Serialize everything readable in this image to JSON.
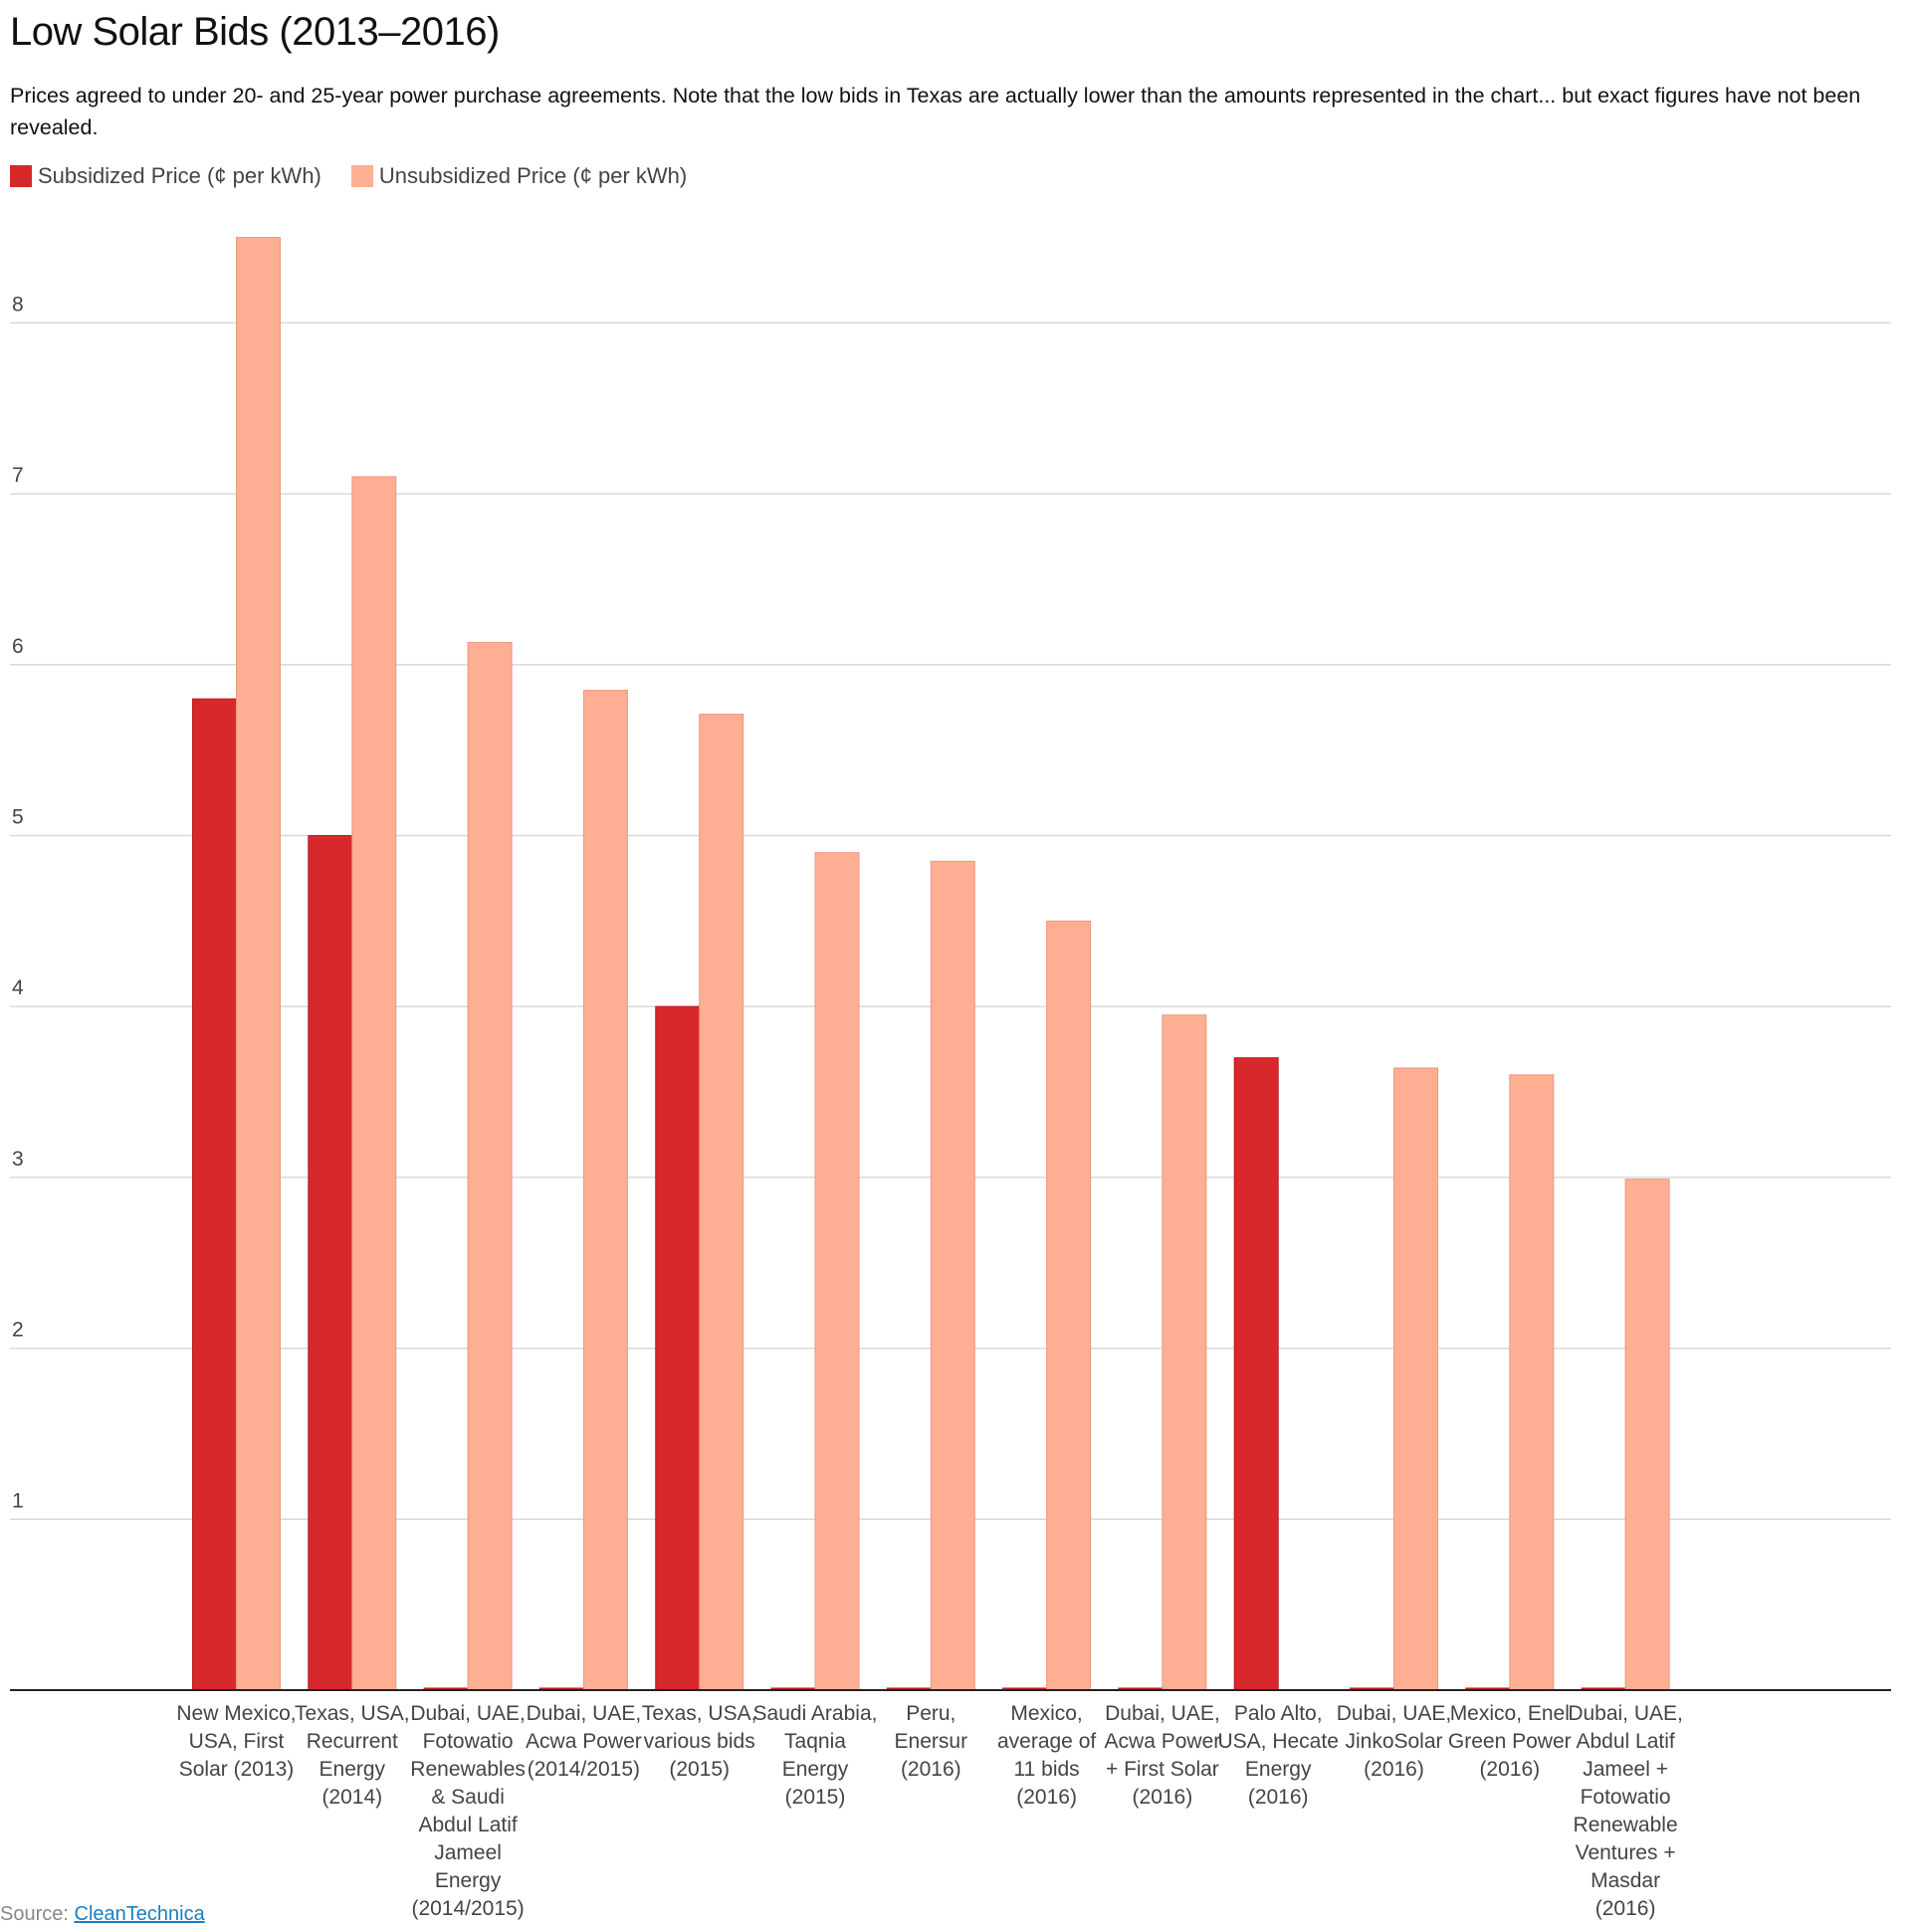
{
  "chart_data": {
    "type": "bar",
    "title": "Low Solar Bids (2013–2016)",
    "subtitle": "Prices agreed to under 20- and 25-year power purchase agreements. Note that the low bids in Texas are actually lower than the amounts represented in the chart... but exact figures have not been revealed.",
    "xlabel": "",
    "ylabel": "",
    "ylim": [
      0,
      8.6
    ],
    "yticks": [
      1,
      2,
      3,
      4,
      5,
      6,
      7,
      8
    ],
    "grid": true,
    "legend_placement": "top-left",
    "categories": [
      "New Mexico, USA, First Solar (2013)",
      "Texas, USA, Recurrent Energy (2014)",
      "Dubai, UAE, Fotowatio Renewables & Saudi Abdul Latif Jameel Energy (2014/2015)",
      "Dubai, UAE, Acwa Power (2014/2015)",
      "Texas, USA, various bids (2015)",
      "Saudi Arabia, Taqnia Energy (2015)",
      "Peru, Enersur (2016)",
      "Mexico, average of 11 bids (2016)",
      "Dubai, UAE, Acwa Power + First Solar (2016)",
      "Palo Alto, USA, Hecate Energy (2016)",
      "Dubai, UAE, JinkoSolar (2016)",
      "Mexico, Enel Green Power (2016)",
      "Dubai, UAE, Abdul Latif Jameel + Fotowatio Renewable Ventures + Masdar (2016)"
    ],
    "series": [
      {
        "name": "Subsidized Price (¢ per kWh)",
        "color": "#d7282c",
        "values": [
          5.8,
          5.0,
          0,
          0,
          4.0,
          0,
          0,
          0,
          0,
          3.7,
          0,
          0,
          0
        ]
      },
      {
        "name": "Unsubsidized Price (¢ per kWh)",
        "color": "#fdae93",
        "values": [
          8.5,
          7.1,
          6.13,
          5.85,
          5.71,
          4.9,
          4.85,
          4.5,
          3.95,
          null,
          3.64,
          3.6,
          2.99
        ]
      }
    ]
  },
  "source": {
    "label": "Source:",
    "link_text": "CleanTechnica"
  }
}
